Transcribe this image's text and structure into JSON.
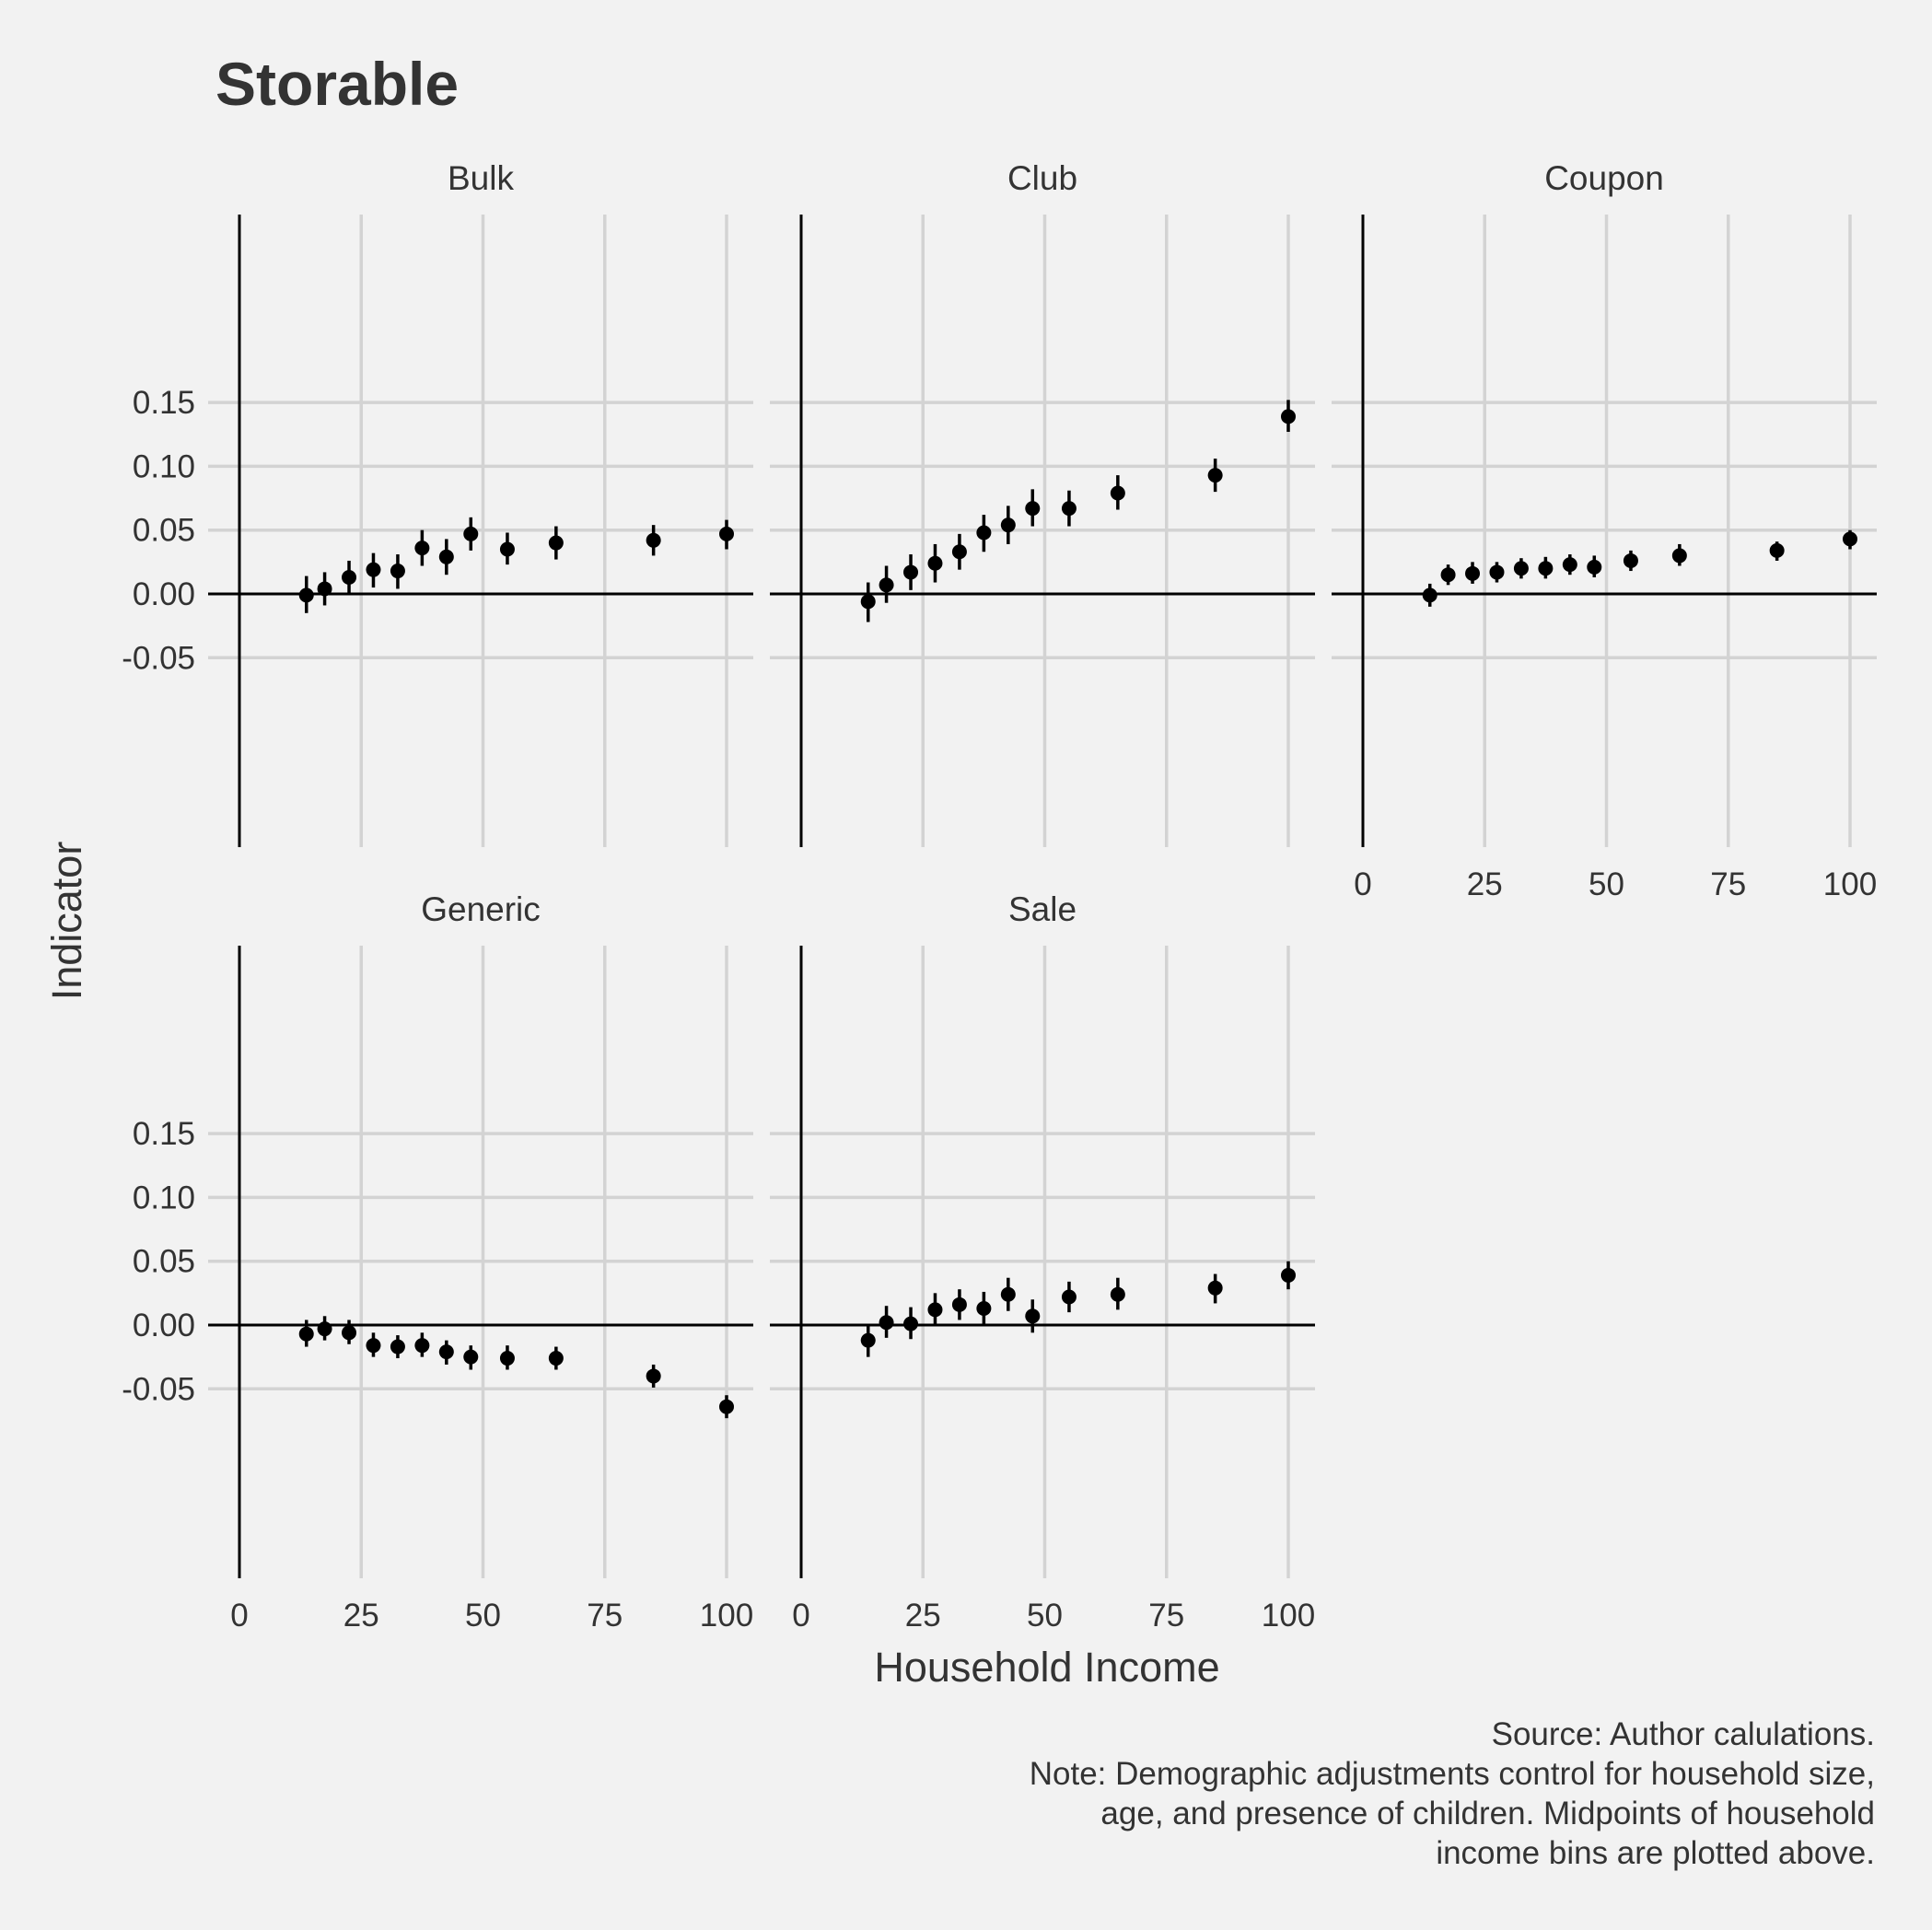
{
  "title": "Storable",
  "xlabel": "Household Income",
  "ylabel": "Indicator",
  "caption": [
    "Source: Author calulations.",
    "Note: Demographic adjustments control for household size,",
    "age, and presence of children. Midpoints of household",
    "income bins are plotted above."
  ],
  "colors": {
    "background": "#f2f2f2",
    "grid": "#d3d3d3",
    "point": "#000000",
    "text": "#333333"
  },
  "chart_data": {
    "type": "scatter",
    "facets": [
      "Bulk",
      "Club",
      "Coupon",
      "Generic",
      "Sale"
    ],
    "x": [
      13.75,
      17.5,
      22.5,
      27.5,
      32.5,
      37.5,
      42.5,
      47.5,
      55,
      65,
      85,
      100
    ],
    "x_ticks": [
      "0",
      "25",
      "50",
      "75",
      "100"
    ],
    "y_ticks": [
      "0.15",
      "0.10",
      "0.05",
      "0.00",
      "-0.05"
    ],
    "xlim": [
      0,
      100
    ],
    "ylim": [
      -0.08,
      0.16
    ],
    "error_bars": "95% interval",
    "grid": true,
    "series": [
      {
        "name": "Bulk",
        "y": [
          -0.001,
          0.004,
          0.013,
          0.019,
          0.018,
          0.036,
          0.029,
          0.047,
          0.035,
          0.04,
          0.042,
          0.047
        ],
        "low": [
          -0.015,
          -0.009,
          0.001,
          0.005,
          0.004,
          0.022,
          0.015,
          0.034,
          0.023,
          0.027,
          0.03,
          0.035
        ],
        "high": [
          0.014,
          0.017,
          0.026,
          0.032,
          0.031,
          0.05,
          0.043,
          0.06,
          0.048,
          0.053,
          0.054,
          0.058
        ]
      },
      {
        "name": "Club",
        "y": [
          -0.006,
          0.007,
          0.017,
          0.024,
          0.033,
          0.048,
          0.054,
          0.067,
          0.067,
          0.079,
          0.093,
          0.139
        ],
        "low": [
          -0.022,
          -0.007,
          0.003,
          0.009,
          0.019,
          0.033,
          0.039,
          0.053,
          0.053,
          0.066,
          0.08,
          0.127
        ],
        "high": [
          0.009,
          0.022,
          0.031,
          0.039,
          0.047,
          0.062,
          0.069,
          0.082,
          0.081,
          0.093,
          0.106,
          0.152
        ]
      },
      {
        "name": "Coupon",
        "y": [
          -0.001,
          0.015,
          0.016,
          0.017,
          0.02,
          0.02,
          0.023,
          0.021,
          0.026,
          0.03,
          0.034,
          0.043
        ],
        "low": [
          -0.01,
          0.007,
          0.008,
          0.009,
          0.012,
          0.012,
          0.015,
          0.013,
          0.018,
          0.022,
          0.026,
          0.035
        ],
        "high": [
          0.008,
          0.023,
          0.025,
          0.025,
          0.028,
          0.029,
          0.031,
          0.03,
          0.034,
          0.039,
          0.041,
          0.05
        ]
      },
      {
        "name": "Generic",
        "y": [
          -0.007,
          -0.003,
          -0.006,
          -0.016,
          -0.017,
          -0.016,
          -0.021,
          -0.025,
          -0.026,
          -0.026,
          -0.04,
          -0.064
        ],
        "low": [
          -0.017,
          -0.012,
          -0.015,
          -0.025,
          -0.026,
          -0.025,
          -0.031,
          -0.035,
          -0.035,
          -0.035,
          -0.049,
          -0.073
        ],
        "high": [
          0.004,
          0.007,
          0.004,
          -0.006,
          -0.008,
          -0.006,
          -0.012,
          -0.016,
          -0.016,
          -0.017,
          -0.031,
          -0.055
        ]
      },
      {
        "name": "Sale",
        "y": [
          -0.012,
          0.002,
          0.001,
          0.012,
          0.016,
          0.013,
          0.024,
          0.007,
          0.022,
          0.024,
          0.029,
          0.039
        ],
        "low": [
          -0.025,
          -0.01,
          -0.011,
          -0.001,
          0.004,
          0.001,
          0.011,
          -0.006,
          0.01,
          0.012,
          0.017,
          0.028
        ],
        "high": [
          0.001,
          0.015,
          0.014,
          0.025,
          0.028,
          0.026,
          0.037,
          0.02,
          0.034,
          0.037,
          0.04,
          0.05
        ]
      }
    ]
  }
}
